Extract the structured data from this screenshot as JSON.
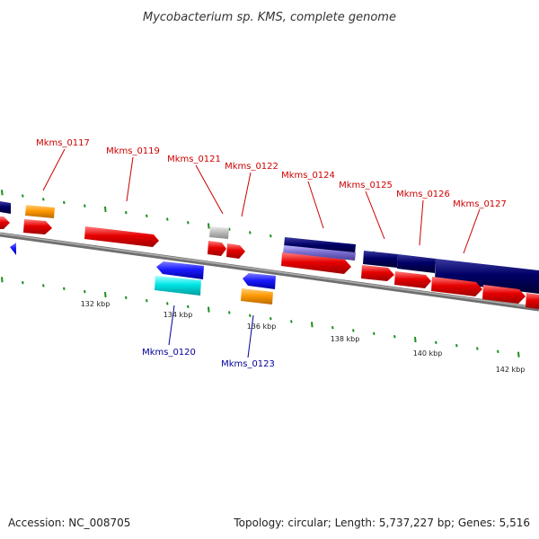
{
  "title": "Mycobacterium sp. KMS, complete genome",
  "footer": {
    "accession": "Accession: NC_008705",
    "summary": "Topology: circular; Length: 5,737,227 bp; Genes: 5,516"
  },
  "colors": {
    "forward_cds": "#e60000",
    "reverse_cds": "#1a1aff",
    "orange_feature": "#ff9900",
    "navy_feature": "#000066",
    "lavender_feature": "#7a6fd0",
    "cyan_feature": "#00e6e6",
    "grey_feature": "#bdbdbd",
    "backbone": "#8c8c8c",
    "tick": "#1a8f1a",
    "label_top": "#cc0000",
    "label_bottom": "#000099"
  },
  "gene_labels_top": [
    "Mkms_0117",
    "Mkms_0119",
    "Mkms_0121",
    "Mkms_0122",
    "Mkms_0124",
    "Mkms_0125",
    "Mkms_0126",
    "Mkms_0127"
  ],
  "gene_labels_bottom": [
    "Mkms_0120",
    "Mkms_0123"
  ],
  "scale_labels": [
    "132 kbp",
    "134 kbp",
    "136 kbp",
    "138 kbp",
    "140 kbp",
    "142 kbp"
  ]
}
